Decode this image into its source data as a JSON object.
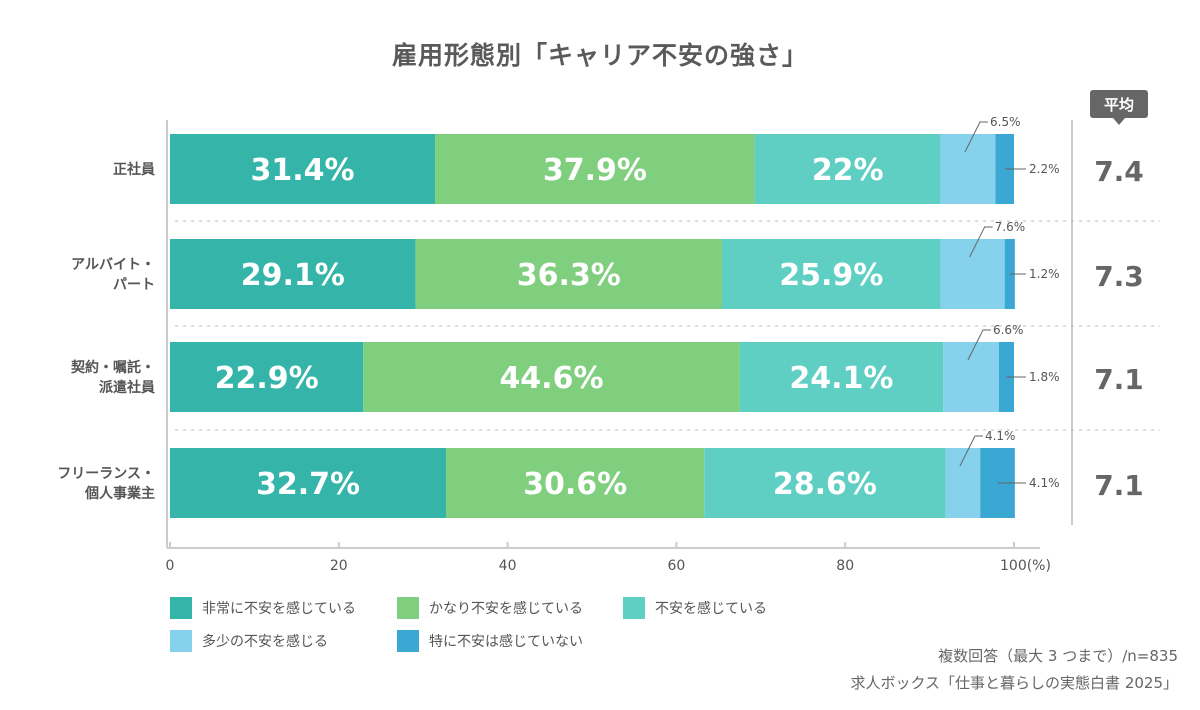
{
  "title": "雇用形態別「キャリア不安の強さ」",
  "avg_badge": "平均",
  "chart_data": {
    "type": "bar",
    "orientation": "horizontal",
    "stacked": true,
    "title": "雇用形態別「キャリア不安の強さ」",
    "categories": [
      [
        "正社員"
      ],
      [
        "アルバイト・",
        "パート"
      ],
      [
        "契約・嘱託・",
        "派遣社員"
      ],
      [
        "フリーランス・",
        "個人事業主"
      ]
    ],
    "series": [
      {
        "name": "非常に不安を感じている",
        "color": "#35b5a9",
        "values": [
          31.4,
          29.1,
          22.9,
          32.7
        ],
        "labels": [
          "31.4%",
          "29.1%",
          "22.9%",
          "32.7%"
        ]
      },
      {
        "name": "かなり不安を感じている",
        "color": "#80cf7f",
        "values": [
          37.9,
          36.3,
          44.6,
          30.6
        ],
        "labels": [
          "37.9%",
          "36.3%",
          "44.6%",
          "30.6%"
        ]
      },
      {
        "name": "不安を感じている",
        "color": "#5fcfc4",
        "values": [
          22,
          25.9,
          24.1,
          28.6
        ],
        "labels": [
          "22%",
          "25.9%",
          "24.1%",
          "28.6%"
        ]
      },
      {
        "name": "多少の不安を感じる",
        "color": "#86d1ec",
        "values": [
          6.5,
          7.6,
          6.6,
          4.1
        ],
        "labels": [
          "6.5%",
          "7.6%",
          "6.6%",
          "4.1%"
        ]
      },
      {
        "name": "特に不安は感じていない",
        "color": "#3ba7d3",
        "values": [
          2.2,
          1.2,
          1.8,
          4.1
        ],
        "labels": [
          "2.2%",
          "1.2%",
          "1.8%",
          "4.1%"
        ]
      }
    ],
    "averages": [
      "7.4",
      "7.3",
      "7.1",
      "7.1"
    ],
    "xlim": [
      0,
      100
    ],
    "xticks": [
      "0",
      "20",
      "40",
      "60",
      "80",
      "100(%)"
    ],
    "legend_position": "bottom-left"
  },
  "notes": [
    "複数回答（最大 3 つまで）/n=835",
    "求人ボックス「仕事と暮らしの実態白書 2025」"
  ]
}
